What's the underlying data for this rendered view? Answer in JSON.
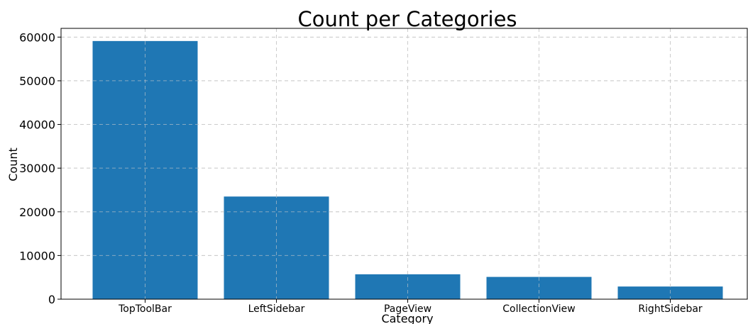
{
  "chart_data": {
    "type": "bar",
    "title": "Count per Categories",
    "xlabel": "Category",
    "ylabel": "Count",
    "categories": [
      "TopToolBar",
      "LeftSidebar",
      "PageView",
      "CollectionView",
      "RightSidebar"
    ],
    "values": [
      59100,
      23500,
      5700,
      5100,
      2900
    ],
    "ylim": [
      0,
      62000
    ],
    "yticks": [
      0,
      10000,
      20000,
      30000,
      40000,
      50000,
      60000
    ],
    "grid": true,
    "bar_color": "#1f77b4",
    "grid_color": "#cccccc"
  }
}
